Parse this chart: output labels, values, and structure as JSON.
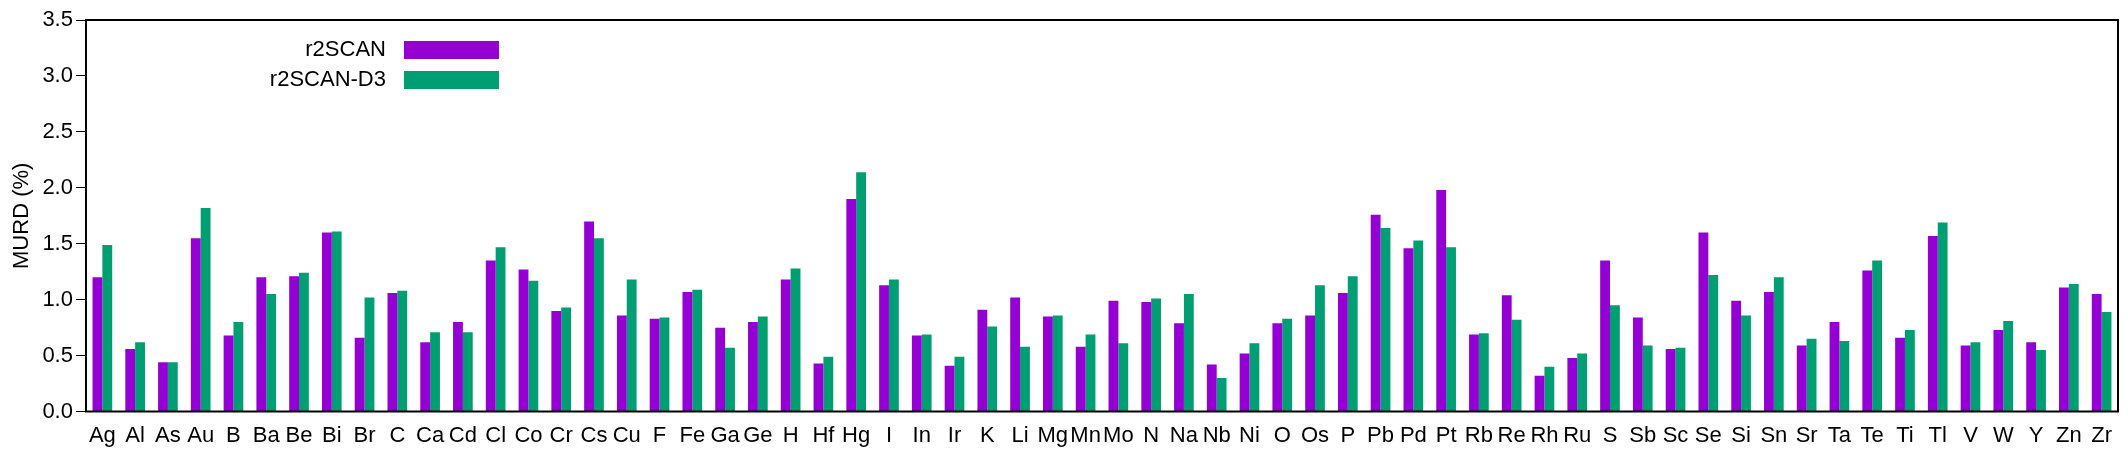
{
  "chart_data": {
    "type": "bar",
    "ylabel": "MURD (%)",
    "categories": [
      "Ag",
      "Al",
      "As",
      "Au",
      "B",
      "Ba",
      "Be",
      "Bi",
      "Br",
      "C",
      "Ca",
      "Cd",
      "Cl",
      "Co",
      "Cr",
      "Cs",
      "Cu",
      "F",
      "Fe",
      "Ga",
      "Ge",
      "H",
      "Hf",
      "Hg",
      "I",
      "In",
      "Ir",
      "K",
      "Li",
      "Mg",
      "Mn",
      "Mo",
      "N",
      "Na",
      "Nb",
      "Ni",
      "O",
      "Os",
      "P",
      "Pb",
      "Pd",
      "Pt",
      "Rb",
      "Re",
      "Rh",
      "Ru",
      "S",
      "Sb",
      "Sc",
      "Se",
      "Si",
      "Sn",
      "Sr",
      "Ta",
      "Te",
      "Ti",
      "Tl",
      "V",
      "W",
      "Y",
      "Zn",
      "Zr"
    ],
    "series": [
      {
        "name": "r2SCAN",
        "color": "#9400d3",
        "values": [
          1.2,
          0.56,
          0.44,
          1.55,
          0.68,
          1.2,
          1.21,
          1.6,
          0.66,
          1.06,
          0.62,
          0.8,
          1.35,
          1.27,
          0.9,
          1.7,
          0.86,
          0.83,
          1.07,
          0.75,
          0.8,
          1.18,
          0.43,
          1.9,
          1.13,
          0.68,
          0.41,
          0.91,
          1.02,
          0.85,
          0.58,
          0.99,
          0.98,
          0.79,
          0.42,
          0.52,
          0.79,
          0.86,
          1.06,
          1.76,
          1.46,
          1.98,
          0.69,
          1.04,
          0.32,
          0.48,
          1.35,
          0.84,
          0.56,
          1.6,
          0.99,
          1.07,
          0.59,
          0.8,
          1.26,
          0.66,
          1.57,
          0.59,
          0.73,
          0.62,
          1.11,
          1.05
        ]
      },
      {
        "name": "r2SCAN-D3",
        "color": "#009e73",
        "values": [
          1.49,
          0.62,
          0.44,
          1.82,
          0.8,
          1.05,
          1.24,
          1.61,
          1.02,
          1.08,
          0.71,
          0.71,
          1.47,
          1.17,
          0.93,
          1.55,
          1.18,
          0.84,
          1.09,
          0.57,
          0.85,
          1.28,
          0.49,
          2.14,
          1.18,
          0.69,
          0.49,
          0.76,
          0.58,
          0.86,
          0.69,
          0.61,
          1.01,
          1.05,
          0.3,
          0.61,
          0.83,
          1.13,
          1.21,
          1.64,
          1.53,
          1.47,
          0.7,
          0.82,
          0.4,
          0.52,
          0.95,
          0.59,
          0.57,
          1.22,
          0.86,
          1.2,
          0.65,
          0.63,
          1.35,
          0.73,
          1.69,
          0.62,
          0.81,
          0.55,
          1.14,
          0.89
        ]
      }
    ],
    "ylim": [
      0,
      3.5
    ],
    "yticks": [
      {
        "value": 0,
        "label": "0.0"
      },
      0.5,
      {
        "value": 1,
        "label": "1.0"
      },
      1.5,
      {
        "value": 2,
        "label": "2.0"
      },
      2.5,
      {
        "value": 3,
        "label": "3.0"
      },
      3.5
    ],
    "legend": "top left"
  }
}
